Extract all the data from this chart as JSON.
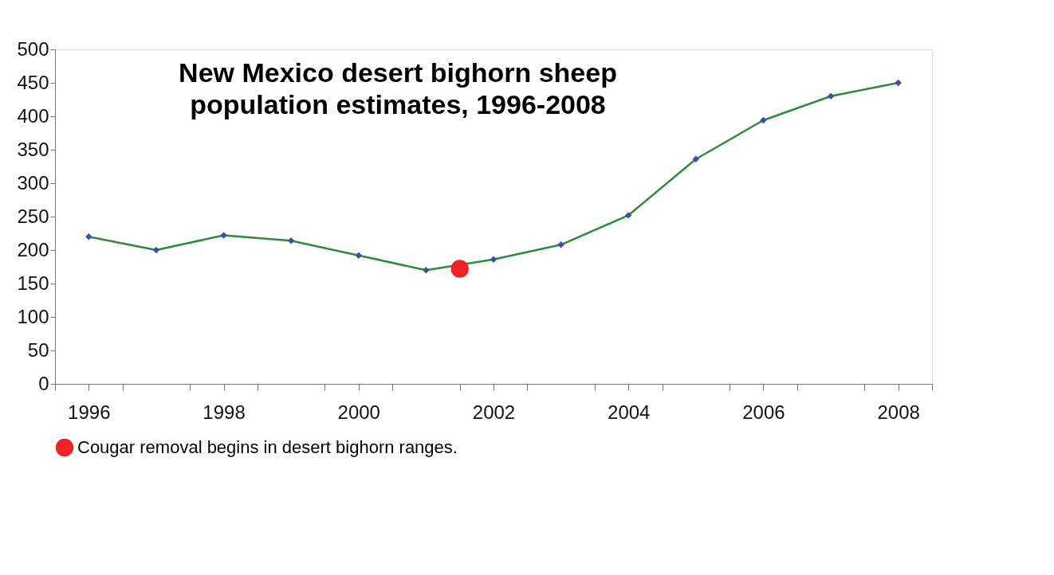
{
  "chart_data": {
    "type": "line",
    "title": "New Mexico desert bighorn sheep population estimates, 1996-2008",
    "series": [
      {
        "color": "#2e8b3a",
        "marker": "none",
        "x": [
          1996,
          1997,
          1998,
          1999,
          2000,
          2001,
          2002,
          2003,
          2004,
          2005,
          2006,
          2007,
          2008
        ],
        "values": [
          220,
          200,
          222,
          214,
          192,
          170,
          186,
          208,
          252,
          336,
          394,
          430,
          450
        ]
      },
      {
        "type": "scatter",
        "color": "#3a4fa8",
        "marker": "diamond",
        "x": [
          1996,
          1997,
          1998,
          1999,
          2000,
          2001,
          2002,
          2003,
          2004,
          2005,
          2006,
          2007,
          2008
        ],
        "values": [
          220,
          200,
          222,
          214,
          192,
          170,
          186,
          208,
          252,
          336,
          394,
          430,
          450
        ]
      },
      {
        "type": "scatter",
        "name": "Cougar removal begins in desert bighorn ranges.",
        "color": "#ee2222",
        "marker": "circle",
        "x": [
          2001.5
        ],
        "values": [
          172
        ]
      }
    ],
    "xlim": [
      1995.5,
      2008.5
    ],
    "xticks": [
      1996,
      1998,
      2000,
      2002,
      2004,
      2006,
      2008,
      {
        "value": 1995.5,
        "label": null
      },
      {
        "value": 1996.5,
        "label": null
      },
      {
        "value": 1997.5,
        "label": null
      },
      {
        "value": 1998.5,
        "label": null
      },
      {
        "value": 1999.5,
        "label": null
      },
      {
        "value": 2000.5,
        "label": null
      },
      {
        "value": 2001.5,
        "label": null
      },
      {
        "value": 2002.5,
        "label": null
      },
      {
        "value": 2003.5,
        "label": null
      },
      {
        "value": 2004.5,
        "label": null
      },
      {
        "value": 2005.5,
        "label": null
      },
      {
        "value": 2006.5,
        "label": null
      },
      {
        "value": 2007.5,
        "label": null
      },
      {
        "value": 2008.5,
        "label": null
      }
    ],
    "ylim": [
      0,
      500
    ],
    "yticks": [
      0,
      50,
      100,
      150,
      200,
      250,
      300,
      350,
      400,
      450,
      500
    ],
    "grid": false,
    "legend": "bottom"
  }
}
